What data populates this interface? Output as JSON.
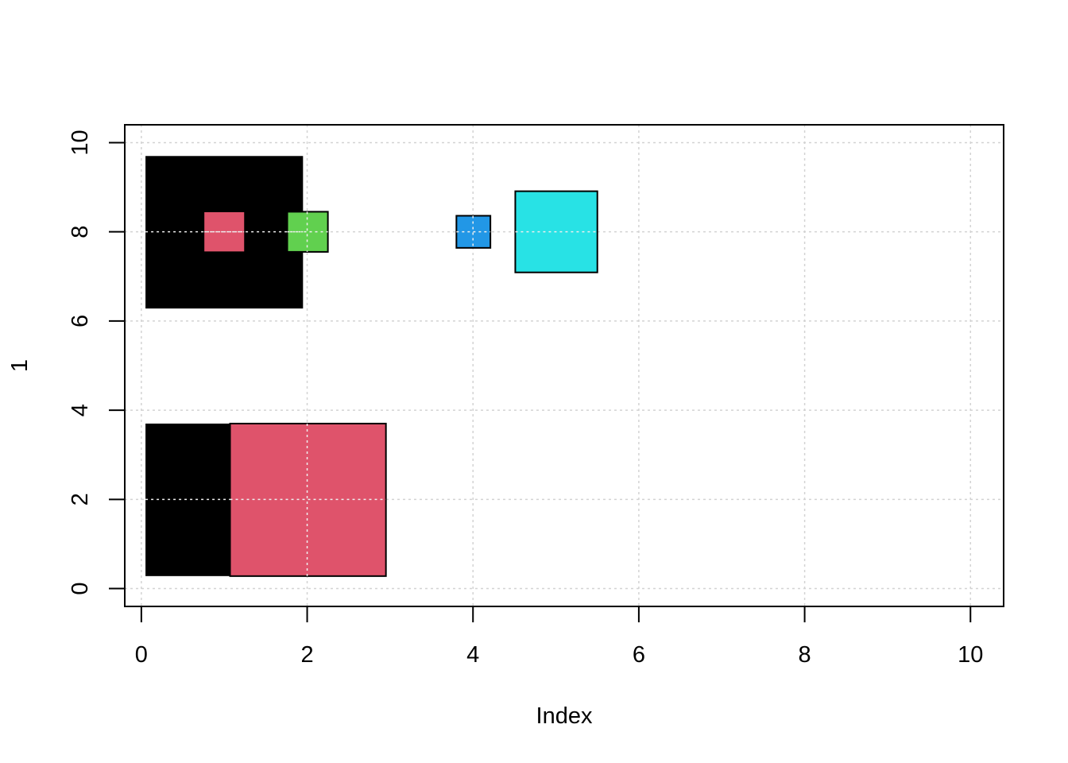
{
  "chart_data": {
    "type": "rect",
    "title": "",
    "xlabel": "Index",
    "ylabel": "1",
    "xlim": [
      -0.2,
      10.4
    ],
    "ylim": [
      -0.4,
      10.4
    ],
    "xticks": [
      "0",
      "2",
      "4",
      "6",
      "8",
      "10"
    ],
    "yticks": [
      "0",
      "2",
      "4",
      "6",
      "8",
      "10"
    ],
    "grid": true,
    "grid_color": "#d3d3d3",
    "rectangles": [
      {
        "name": "black-square-top",
        "x0": 0.05,
        "y0": 6.28,
        "x1": 1.95,
        "y1": 9.7,
        "fill": "#000000",
        "stroke": false
      },
      {
        "name": "red-square-top",
        "x0": 0.76,
        "y0": 7.56,
        "x1": 1.24,
        "y1": 8.44,
        "fill": "#DF536B",
        "stroke": false
      },
      {
        "name": "green-square",
        "x0": 1.76,
        "y0": 7.55,
        "x1": 2.25,
        "y1": 8.45,
        "fill": "#61D04F",
        "stroke": true
      },
      {
        "name": "blue-square",
        "x0": 3.8,
        "y0": 7.64,
        "x1": 4.21,
        "y1": 8.36,
        "fill": "#2297E6",
        "stroke": true
      },
      {
        "name": "cyan-square",
        "x0": 4.51,
        "y0": 7.09,
        "x1": 5.5,
        "y1": 8.91,
        "fill": "#28E2E5",
        "stroke": true
      },
      {
        "name": "black-rect-bottom",
        "x0": 0.05,
        "y0": 0.28,
        "x1": 1.07,
        "y1": 3.7,
        "fill": "#000000",
        "stroke": false
      },
      {
        "name": "red-rect-bottom",
        "x0": 1.07,
        "y0": 0.28,
        "x1": 2.95,
        "y1": 3.7,
        "fill": "#DF536B",
        "stroke": true
      }
    ]
  }
}
